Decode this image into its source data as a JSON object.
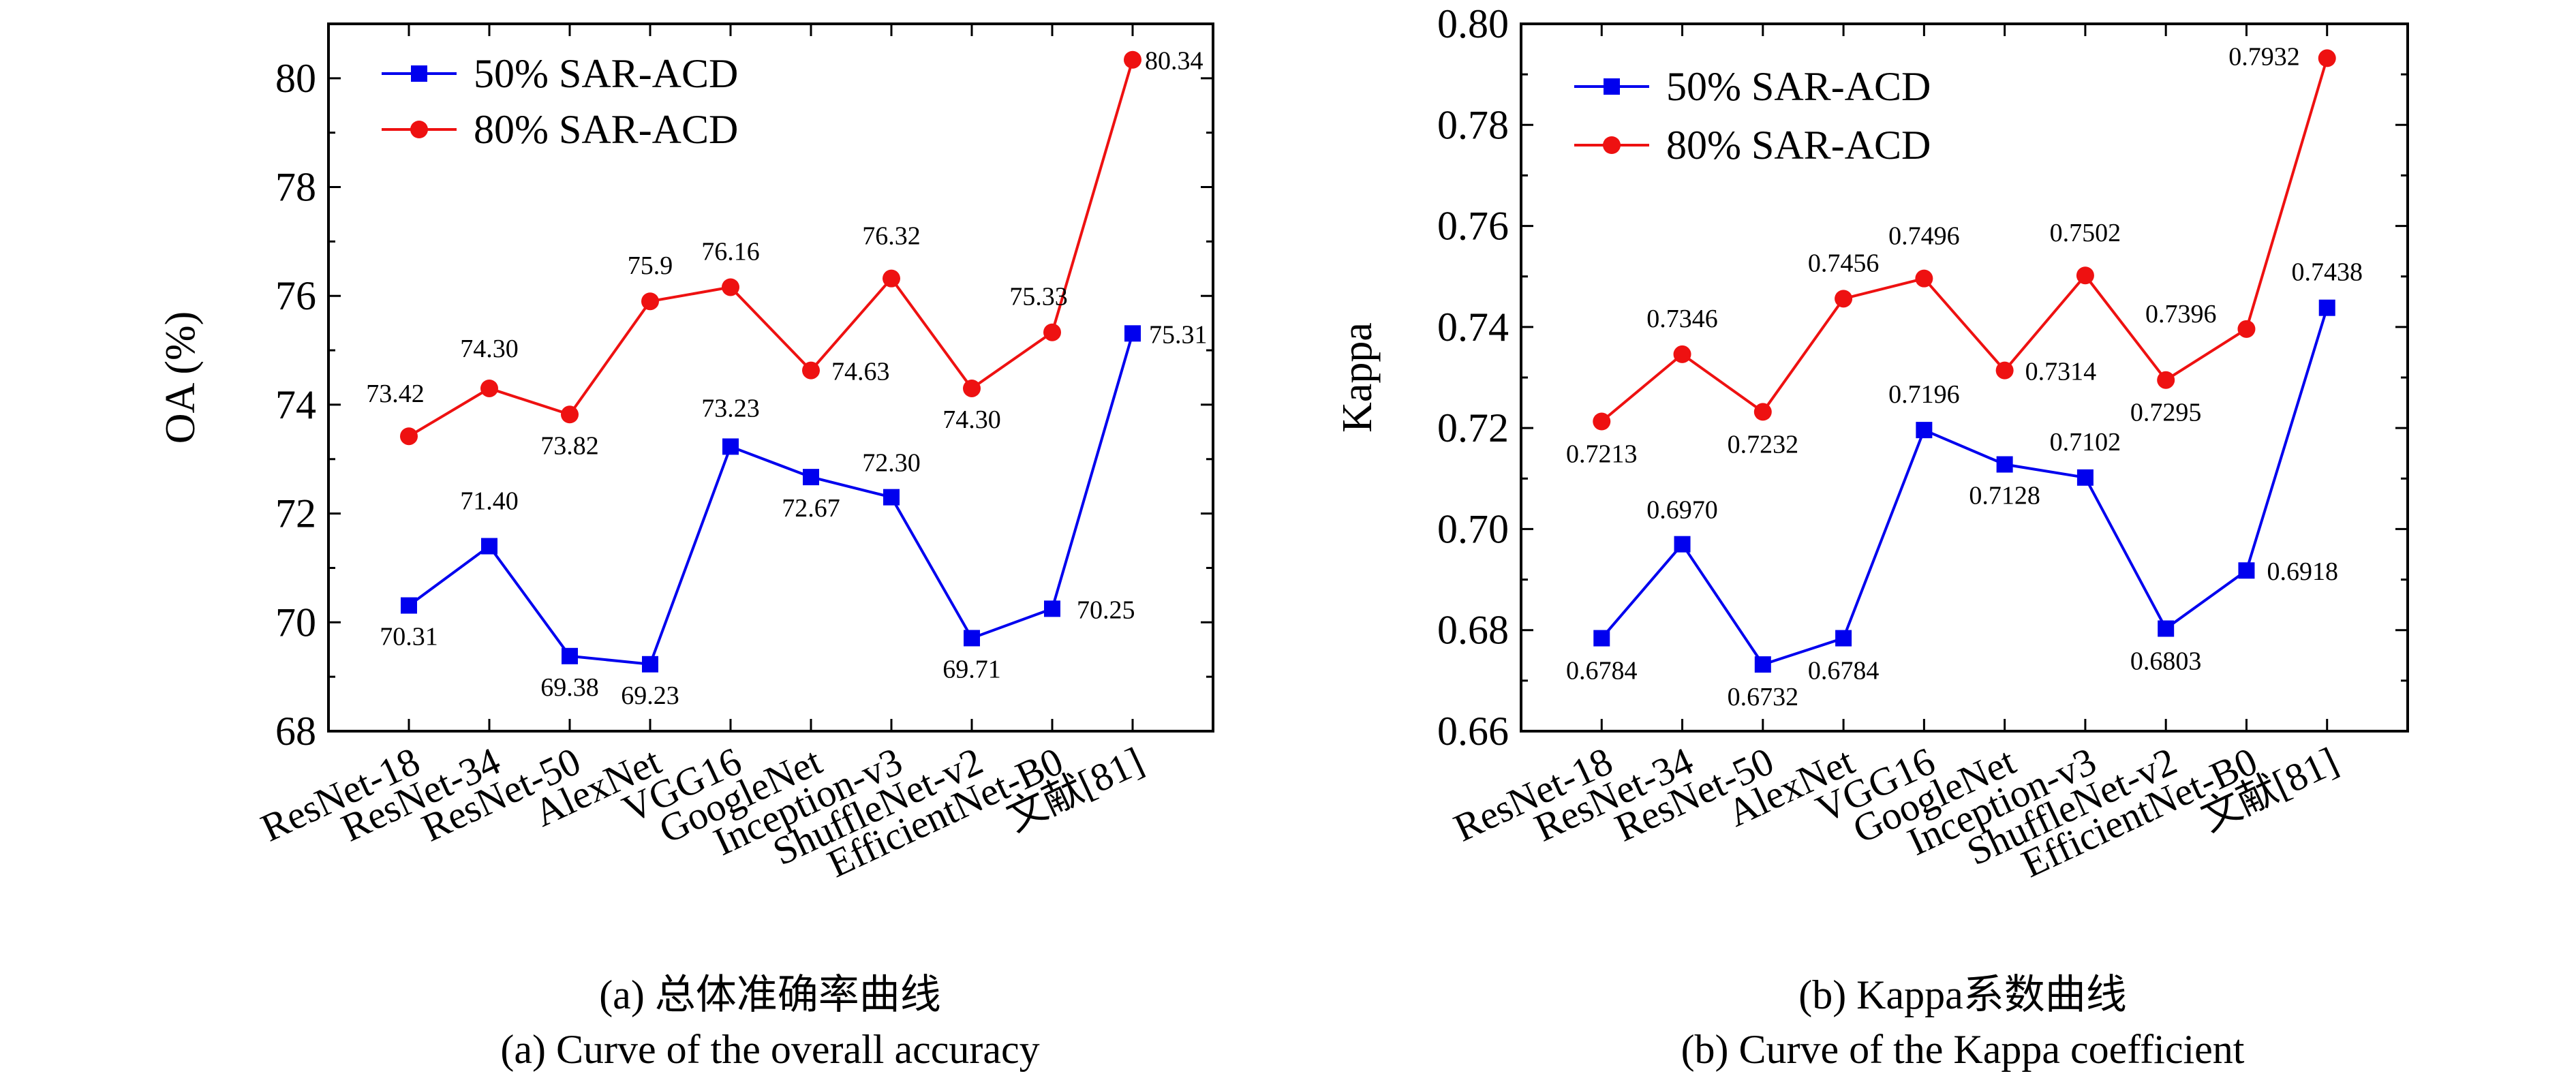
{
  "chart_data": [
    {
      "type": "line",
      "ylabel": "OA (%)",
      "xlabel": "",
      "ylim": [
        68,
        81
      ],
      "yticks": [
        "68",
        "70",
        "72",
        "74",
        "76",
        "78",
        "80"
      ],
      "categories": [
        "ResNet-18",
        "ResNet-34",
        "ResNet-50",
        "AlexNet",
        "VGG16",
        "GoogleNet",
        "Inception-v3",
        "ShuffleNet-v2",
        "EfficientNet-B0",
        "文献[81]"
      ],
      "series": [
        {
          "name": "50% SAR-ACD",
          "color": "#0000ee",
          "marker": "square",
          "values": [
            70.31,
            71.4,
            69.38,
            69.23,
            73.23,
            72.67,
            72.3,
            69.71,
            70.25,
            75.31
          ],
          "labels": [
            "70.31",
            "71.40",
            "69.38",
            "69.23",
            "73.23",
            "72.67",
            "72.30",
            "69.71",
            "70.25",
            "75.31"
          ]
        },
        {
          "name": "80% SAR-ACD",
          "color": "#ee1111",
          "marker": "circle",
          "values": [
            73.42,
            74.3,
            73.82,
            75.9,
            76.16,
            74.63,
            76.32,
            74.3,
            75.33,
            80.34
          ],
          "labels": [
            "73.42",
            "74.30",
            "73.82",
            "75.9",
            "76.16",
            "74.63",
            "76.32",
            "74.30",
            "75.33",
            "80.34"
          ]
        }
      ],
      "legend": "top-left",
      "caption_cn": "(a) 总体准确率曲线",
      "caption_en": "(a) Curve of the overall accuracy"
    },
    {
      "type": "line",
      "ylabel": "Kappa",
      "xlabel": "",
      "ylim": [
        0.66,
        0.8
      ],
      "yticks": [
        "0.66",
        "0.68",
        "0.70",
        "0.72",
        "0.74",
        "0.76",
        "0.78",
        "0.80"
      ],
      "categories": [
        "ResNet-18",
        "ResNet-34",
        "ResNet-50",
        "AlexNet",
        "VGG16",
        "GoogleNet",
        "Inception-v3",
        "ShuffleNet-v2",
        "EfficientNet-B0",
        "文献[81]"
      ],
      "series": [
        {
          "name": "50% SAR-ACD",
          "color": "#0000ee",
          "marker": "square",
          "values": [
            0.6784,
            0.697,
            0.6732,
            0.6784,
            0.7196,
            0.7128,
            0.7102,
            0.6803,
            0.6918,
            0.7438
          ],
          "labels": [
            "0.6784",
            "0.6970",
            "0.6732",
            "0.6784",
            "0.7196",
            "0.7128",
            "0.7102",
            "0.6803",
            "0.6918",
            "0.7438"
          ]
        },
        {
          "name": "80% SAR-ACD",
          "color": "#ee1111",
          "marker": "circle",
          "values": [
            0.7213,
            0.7346,
            0.7232,
            0.7456,
            0.7496,
            0.7314,
            0.7502,
            0.7295,
            0.7396,
            0.7932
          ],
          "labels": [
            "0.7213",
            "0.7346",
            "0.7232",
            "0.7456",
            "0.7496",
            "0.7314",
            "0.7502",
            "0.7295",
            "0.7396",
            "0.7932"
          ]
        }
      ],
      "legend": "top-left",
      "caption_cn": "(b) Kappa系数曲线",
      "caption_en": "(b) Curve of the Kappa coefficient"
    }
  ]
}
